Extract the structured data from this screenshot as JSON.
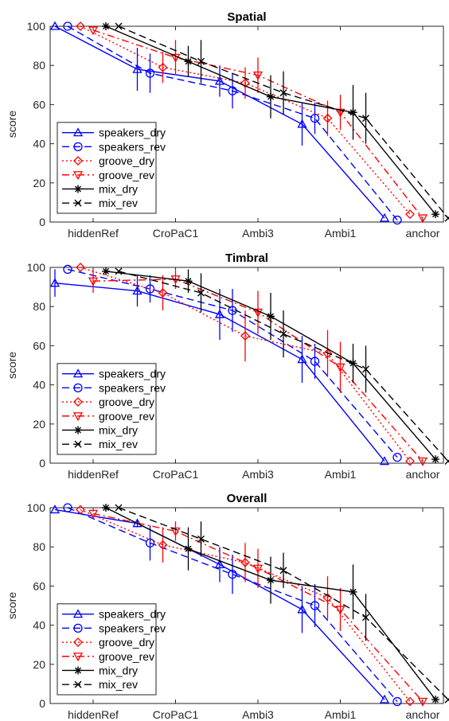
{
  "chart_data": [
    {
      "type": "line",
      "title": "Spatial",
      "ylabel": "score",
      "xlabel": "",
      "ylim": [
        0,
        100
      ],
      "yticks": [
        0,
        20,
        40,
        60,
        80,
        100
      ],
      "grid": false,
      "legend_position": "bottom-left",
      "categories": [
        "hiddenRef",
        "CroPaC1",
        "Ambi3",
        "Ambi1",
        "anchor"
      ],
      "series": [
        {
          "name": "speakers_dry",
          "color": "#0000ff",
          "dash": "solid",
          "marker": "triangle-up",
          "values": [
            100,
            78,
            72,
            50,
            2
          ],
          "err": [
            0,
            11,
            8,
            11,
            0
          ]
        },
        {
          "name": "speakers_rev",
          "color": "#0000ff",
          "dash": "dashed",
          "marker": "circle",
          "values": [
            100,
            76,
            67,
            53,
            1
          ],
          "err": [
            0,
            10,
            9,
            8,
            0
          ]
        },
        {
          "name": "groove_dry",
          "color": "#ff0000",
          "dash": "dotted",
          "marker": "diamond",
          "values": [
            100,
            79,
            71,
            53,
            4
          ],
          "err": [
            0,
            8,
            8,
            9,
            0
          ]
        },
        {
          "name": "groove_rev",
          "color": "#ff0000",
          "dash": "dashdot",
          "marker": "triangle-down",
          "values": [
            98,
            84,
            75,
            56,
            2
          ],
          "err": [
            0,
            9,
            9,
            9,
            0
          ]
        },
        {
          "name": "mix_dry",
          "color": "#000000",
          "dash": "solid",
          "marker": "star",
          "values": [
            100,
            82,
            64,
            56,
            4
          ],
          "err": [
            0,
            8,
            11,
            14,
            0
          ]
        },
        {
          "name": "mix_rev",
          "color": "#000000",
          "dash": "dashed",
          "marker": "x",
          "values": [
            100,
            82,
            66,
            53,
            2
          ],
          "err": [
            0,
            11,
            11,
            13,
            0
          ]
        }
      ]
    },
    {
      "type": "line",
      "title": "Timbral",
      "ylabel": "score",
      "xlabel": "",
      "ylim": [
        0,
        100
      ],
      "yticks": [
        0,
        20,
        40,
        60,
        80,
        100
      ],
      "grid": false,
      "legend_position": "bottom-left",
      "categories": [
        "hiddenRef",
        "CroPaC1",
        "Ambi3",
        "Ambi1",
        "anchor"
      ],
      "series": [
        {
          "name": "speakers_dry",
          "color": "#0000ff",
          "dash": "solid",
          "marker": "triangle-up",
          "values": [
            92,
            88,
            76,
            53,
            1
          ],
          "err": [
            7,
            8,
            13,
            12,
            0
          ]
        },
        {
          "name": "speakers_rev",
          "color": "#0000ff",
          "dash": "dashed",
          "marker": "circle",
          "values": [
            99,
            89,
            78,
            52,
            3
          ],
          "err": [
            0,
            7,
            11,
            9,
            0
          ]
        },
        {
          "name": "groove_dry",
          "color": "#ff0000",
          "dash": "dotted",
          "marker": "diamond",
          "values": [
            100,
            87,
            65,
            56,
            1
          ],
          "err": [
            0,
            9,
            13,
            12,
            0
          ]
        },
        {
          "name": "groove_rev",
          "color": "#ff0000",
          "dash": "dashdot",
          "marker": "triangle-down",
          "values": [
            93,
            94,
            77,
            49,
            1
          ],
          "err": [
            6,
            5,
            11,
            13,
            0
          ]
        },
        {
          "name": "mix_dry",
          "color": "#000000",
          "dash": "solid",
          "marker": "star",
          "values": [
            98,
            93,
            75,
            51,
            2
          ],
          "err": [
            0,
            6,
            12,
            10,
            0
          ]
        },
        {
          "name": "mix_rev",
          "color": "#000000",
          "dash": "dashed",
          "marker": "x",
          "values": [
            98,
            87,
            66,
            48,
            1
          ],
          "err": [
            0,
            10,
            12,
            12,
            0
          ]
        }
      ]
    },
    {
      "type": "line",
      "title": "Overall",
      "ylabel": "score",
      "xlabel": "",
      "ylim": [
        0,
        100
      ],
      "yticks": [
        0,
        20,
        40,
        60,
        80,
        100
      ],
      "grid": false,
      "legend_position": "bottom-left",
      "categories": [
        "hiddenRef",
        "CroPaC1",
        "Ambi3",
        "Ambi1",
        "anchor"
      ],
      "series": [
        {
          "name": "speakers_dry",
          "color": "#0000ff",
          "dash": "solid",
          "marker": "triangle-up",
          "values": [
            99,
            92,
            71,
            48,
            2
          ],
          "err": [
            0,
            2,
            9,
            12,
            0
          ]
        },
        {
          "name": "speakers_rev",
          "color": "#0000ff",
          "dash": "dashed",
          "marker": "circle",
          "values": [
            100,
            82,
            66,
            50,
            1
          ],
          "err": [
            0,
            9,
            10,
            11,
            0
          ]
        },
        {
          "name": "groove_dry",
          "color": "#ff0000",
          "dash": "dotted",
          "marker": "diamond",
          "values": [
            99,
            81,
            72,
            54,
            1
          ],
          "err": [
            0,
            9,
            10,
            11,
            0
          ]
        },
        {
          "name": "groove_rev",
          "color": "#ff0000",
          "dash": "dashdot",
          "marker": "triangle-down",
          "values": [
            97,
            88,
            69,
            48,
            1
          ],
          "err": [
            0,
            5,
            10,
            11,
            0
          ]
        },
        {
          "name": "mix_dry",
          "color": "#000000",
          "dash": "solid",
          "marker": "star",
          "values": [
            100,
            79,
            63,
            57,
            2
          ],
          "err": [
            0,
            11,
            12,
            14,
            0
          ]
        },
        {
          "name": "mix_rev",
          "color": "#000000",
          "dash": "dashed",
          "marker": "x",
          "values": [
            100,
            84,
            68,
            44,
            2
          ],
          "err": [
            0,
            9,
            9,
            12,
            0
          ]
        }
      ]
    }
  ]
}
